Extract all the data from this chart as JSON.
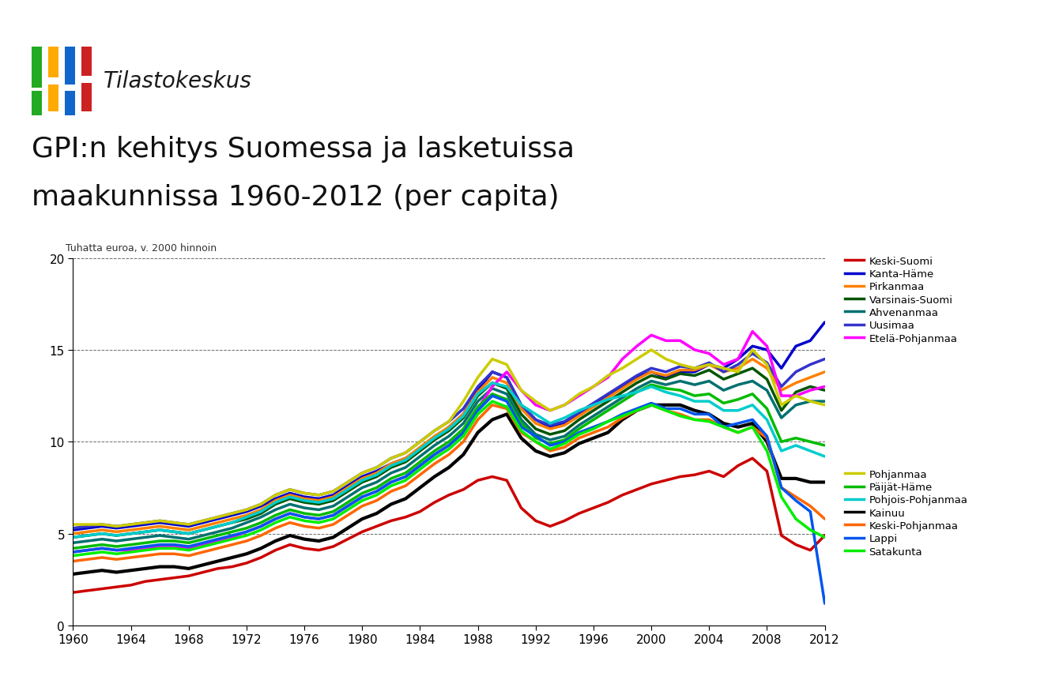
{
  "title_line1": "GPI:n kehitys Suomessa ja lasketuissa",
  "title_line2": "maakunnissa 1960-2012 (per capita)",
  "subtitle": "Tuhatta euroa, v. 2000 hinnoin",
  "years": [
    1960,
    1961,
    1962,
    1963,
    1964,
    1965,
    1966,
    1967,
    1968,
    1969,
    1970,
    1971,
    1972,
    1973,
    1974,
    1975,
    1976,
    1977,
    1978,
    1979,
    1980,
    1981,
    1982,
    1983,
    1984,
    1985,
    1986,
    1987,
    1988,
    1989,
    1990,
    1991,
    1992,
    1993,
    1994,
    1995,
    1996,
    1997,
    1998,
    1999,
    2000,
    2001,
    2002,
    2003,
    2004,
    2005,
    2006,
    2007,
    2008,
    2009,
    2010,
    2011,
    2012
  ],
  "series": [
    {
      "name": "Keski-Suomi",
      "color": "#CC0000",
      "lw": 2.5,
      "values": [
        1.8,
        1.9,
        2.0,
        2.1,
        2.2,
        2.4,
        2.5,
        2.6,
        2.7,
        2.9,
        3.1,
        3.2,
        3.4,
        3.7,
        4.1,
        4.4,
        4.2,
        4.1,
        4.3,
        4.7,
        5.1,
        5.4,
        5.7,
        5.9,
        6.2,
        6.7,
        7.1,
        7.4,
        7.9,
        8.1,
        7.9,
        6.4,
        5.7,
        5.4,
        5.7,
        6.1,
        6.4,
        6.7,
        7.1,
        7.4,
        7.7,
        7.9,
        8.1,
        8.2,
        8.4,
        8.1,
        8.7,
        9.1,
        8.4,
        4.9,
        4.4,
        4.1,
        4.9
      ]
    },
    {
      "name": "Kanta-Häme",
      "color": "#0000CC",
      "lw": 2.5,
      "values": [
        5.2,
        5.3,
        5.4,
        5.3,
        5.4,
        5.5,
        5.6,
        5.5,
        5.4,
        5.6,
        5.8,
        6.0,
        6.2,
        6.5,
        6.9,
        7.2,
        7.0,
        6.9,
        7.1,
        7.6,
        8.1,
        8.4,
        8.8,
        9.1,
        9.6,
        10.2,
        10.8,
        11.5,
        12.8,
        13.8,
        13.5,
        12.0,
        11.2,
        10.8,
        11.0,
        11.5,
        12.0,
        12.5,
        13.0,
        13.5,
        13.8,
        13.5,
        13.8,
        13.8,
        14.2,
        14.0,
        14.5,
        15.2,
        15.0,
        14.0,
        15.2,
        15.5,
        16.5
      ]
    },
    {
      "name": "Pirkanmaa",
      "color": "#FF8000",
      "lw": 2.5,
      "values": [
        5.0,
        5.1,
        5.2,
        5.1,
        5.2,
        5.3,
        5.4,
        5.3,
        5.2,
        5.4,
        5.6,
        5.8,
        6.0,
        6.3,
        6.8,
        7.1,
        6.9,
        6.8,
        7.0,
        7.5,
        8.0,
        8.3,
        8.8,
        9.1,
        9.7,
        10.3,
        10.8,
        11.5,
        12.7,
        13.5,
        13.2,
        11.8,
        11.0,
        10.7,
        10.9,
        11.4,
        11.9,
        12.4,
        12.9,
        13.4,
        13.8,
        13.6,
        13.9,
        13.9,
        14.2,
        13.8,
        14.0,
        14.5,
        14.0,
        12.8,
        13.2,
        13.5,
        13.8
      ]
    },
    {
      "name": "Varsinais-Suomi",
      "color": "#005500",
      "lw": 2.5,
      "values": [
        4.8,
        4.9,
        5.0,
        4.9,
        5.0,
        5.1,
        5.2,
        5.1,
        5.0,
        5.2,
        5.4,
        5.6,
        5.8,
        6.1,
        6.6,
        6.9,
        6.7,
        6.6,
        6.8,
        7.3,
        7.8,
        8.1,
        8.6,
        8.9,
        9.5,
        10.1,
        10.6,
        11.3,
        12.5,
        13.2,
        12.9,
        11.5,
        10.7,
        10.4,
        10.6,
        11.2,
        11.7,
        12.2,
        12.7,
        13.2,
        13.6,
        13.4,
        13.7,
        13.6,
        13.9,
        13.4,
        13.7,
        14.0,
        13.4,
        11.7,
        12.7,
        13.0,
        12.8
      ]
    },
    {
      "name": "Ahvenanmaa",
      "color": "#007070",
      "lw": 2.5,
      "values": [
        4.5,
        4.6,
        4.7,
        4.6,
        4.7,
        4.8,
        4.9,
        4.8,
        4.7,
        4.9,
        5.1,
        5.3,
        5.6,
        5.9,
        6.3,
        6.6,
        6.4,
        6.3,
        6.5,
        7.0,
        7.5,
        7.8,
        8.3,
        8.6,
        9.2,
        9.8,
        10.3,
        11.0,
        12.2,
        12.9,
        12.6,
        11.2,
        10.4,
        10.1,
        10.3,
        10.9,
        11.4,
        11.9,
        12.4,
        12.9,
        13.3,
        13.1,
        13.3,
        13.1,
        13.3,
        12.8,
        13.1,
        13.3,
        12.8,
        11.3,
        12.0,
        12.2,
        12.2
      ]
    },
    {
      "name": "Uusimaa",
      "color": "#3333CC",
      "lw": 2.5,
      "values": [
        5.3,
        5.4,
        5.5,
        5.4,
        5.5,
        5.6,
        5.7,
        5.6,
        5.5,
        5.7,
        5.9,
        6.1,
        6.3,
        6.6,
        7.1,
        7.4,
        7.2,
        7.1,
        7.3,
        7.8,
        8.3,
        8.6,
        9.1,
        9.4,
        10.0,
        10.6,
        11.1,
        11.8,
        13.0,
        13.8,
        13.5,
        12.0,
        11.2,
        10.9,
        11.1,
        11.6,
        12.1,
        12.6,
        13.1,
        13.6,
        14.0,
        13.8,
        14.1,
        14.0,
        14.3,
        13.8,
        14.2,
        14.8,
        14.3,
        13.0,
        13.8,
        14.2,
        14.5
      ]
    },
    {
      "name": "Etelä-Pohjanmaa",
      "color": "#FF00FF",
      "lw": 2.5,
      "values": [
        4.0,
        4.1,
        4.2,
        4.1,
        4.1,
        4.2,
        4.3,
        4.3,
        4.2,
        4.4,
        4.6,
        4.8,
        5.1,
        5.4,
        5.8,
        6.1,
        5.9,
        5.8,
        6.0,
        6.5,
        7.0,
        7.3,
        7.8,
        8.1,
        8.7,
        9.3,
        9.8,
        10.5,
        11.8,
        13.0,
        13.8,
        12.8,
        12.0,
        11.7,
        12.0,
        12.5,
        13.0,
        13.5,
        14.5,
        15.2,
        15.8,
        15.5,
        15.5,
        15.0,
        14.8,
        14.2,
        14.5,
        16.0,
        15.2,
        12.5,
        12.5,
        12.8,
        13.0
      ]
    },
    {
      "name": "Pohjanmaa",
      "color": "#CCCC00",
      "lw": 2.5,
      "values": [
        5.5,
        5.5,
        5.5,
        5.4,
        5.5,
        5.6,
        5.7,
        5.6,
        5.5,
        5.7,
        5.9,
        6.1,
        6.3,
        6.6,
        7.1,
        7.4,
        7.2,
        7.1,
        7.3,
        7.8,
        8.3,
        8.6,
        9.1,
        9.4,
        10.0,
        10.6,
        11.1,
        12.2,
        13.5,
        14.5,
        14.2,
        12.8,
        12.2,
        11.7,
        12.0,
        12.6,
        13.0,
        13.6,
        14.0,
        14.5,
        15.0,
        14.5,
        14.2,
        14.0,
        14.2,
        14.0,
        13.8,
        15.0,
        14.2,
        12.0,
        12.5,
        12.2,
        12.0
      ]
    },
    {
      "name": "Päijät-Häme",
      "color": "#00BB00",
      "lw": 2.5,
      "values": [
        4.2,
        4.3,
        4.4,
        4.3,
        4.4,
        4.5,
        4.6,
        4.6,
        4.5,
        4.7,
        4.9,
        5.1,
        5.3,
        5.6,
        6.0,
        6.3,
        6.1,
        6.0,
        6.2,
        6.7,
        7.2,
        7.5,
        8.0,
        8.3,
        8.9,
        9.5,
        10.0,
        10.7,
        11.9,
        12.6,
        12.3,
        11.0,
        10.2,
        9.9,
        10.1,
        10.7,
        11.2,
        11.7,
        12.2,
        12.7,
        13.1,
        12.9,
        12.8,
        12.5,
        12.6,
        12.1,
        12.3,
        12.6,
        11.8,
        10.0,
        10.2,
        10.0,
        9.8
      ]
    },
    {
      "name": "Pohjois-Pohjanmaa",
      "color": "#00CCCC",
      "lw": 2.5,
      "values": [
        4.8,
        4.9,
        5.0,
        4.9,
        5.0,
        5.1,
        5.2,
        5.1,
        5.0,
        5.2,
        5.4,
        5.6,
        5.9,
        6.2,
        6.7,
        7.0,
        6.8,
        6.7,
        6.9,
        7.4,
        7.9,
        8.2,
        8.7,
        9.0,
        9.6,
        10.2,
        10.7,
        11.4,
        12.6,
        13.2,
        13.0,
        12.0,
        11.5,
        11.0,
        11.3,
        11.7,
        12.0,
        12.3,
        12.5,
        12.7,
        13.0,
        12.7,
        12.5,
        12.2,
        12.2,
        11.7,
        11.7,
        12.0,
        11.2,
        9.5,
        9.8,
        9.5,
        9.2
      ]
    },
    {
      "name": "Kainuu",
      "color": "#000000",
      "lw": 3.0,
      "values": [
        2.8,
        2.9,
        3.0,
        2.9,
        3.0,
        3.1,
        3.2,
        3.2,
        3.1,
        3.3,
        3.5,
        3.7,
        3.9,
        4.2,
        4.6,
        4.9,
        4.7,
        4.6,
        4.8,
        5.3,
        5.8,
        6.1,
        6.6,
        6.9,
        7.5,
        8.1,
        8.6,
        9.3,
        10.5,
        11.2,
        11.5,
        10.2,
        9.5,
        9.2,
        9.4,
        9.9,
        10.2,
        10.5,
        11.2,
        11.7,
        12.0,
        12.0,
        12.0,
        11.7,
        11.5,
        11.0,
        10.8,
        11.0,
        10.0,
        8.0,
        8.0,
        7.8,
        7.8
      ]
    },
    {
      "name": "Keski-Pohjanmaa",
      "color": "#FF6600",
      "lw": 2.5,
      "values": [
        3.5,
        3.6,
        3.7,
        3.6,
        3.7,
        3.8,
        3.9,
        3.9,
        3.8,
        4.0,
        4.2,
        4.4,
        4.6,
        4.9,
        5.3,
        5.6,
        5.4,
        5.3,
        5.5,
        6.0,
        6.5,
        6.8,
        7.3,
        7.6,
        8.2,
        8.8,
        9.3,
        10.0,
        11.2,
        12.0,
        11.8,
        10.5,
        10.0,
        9.5,
        9.7,
        10.2,
        10.5,
        10.8,
        11.3,
        11.7,
        12.0,
        11.7,
        11.5,
        11.2,
        11.2,
        10.8,
        10.5,
        10.8,
        10.2,
        7.5,
        7.0,
        6.5,
        5.8
      ]
    },
    {
      "name": "Lappi",
      "color": "#0055EE",
      "lw": 2.5,
      "values": [
        4.0,
        4.1,
        4.2,
        4.1,
        4.2,
        4.3,
        4.4,
        4.4,
        4.3,
        4.5,
        4.7,
        4.9,
        5.1,
        5.4,
        5.8,
        6.1,
        5.9,
        5.8,
        6.0,
        6.5,
        7.0,
        7.3,
        7.8,
        8.1,
        8.7,
        9.3,
        9.8,
        10.5,
        11.7,
        12.5,
        12.2,
        10.8,
        10.3,
        9.8,
        10.0,
        10.5,
        10.8,
        11.1,
        11.5,
        11.8,
        12.1,
        11.8,
        11.8,
        11.5,
        11.5,
        10.8,
        11.0,
        11.2,
        10.3,
        7.5,
        6.8,
        6.2,
        1.2
      ]
    },
    {
      "name": "Satakunta",
      "color": "#00EE00",
      "lw": 2.5,
      "values": [
        3.8,
        3.9,
        4.0,
        3.9,
        4.0,
        4.1,
        4.2,
        4.2,
        4.1,
        4.3,
        4.5,
        4.7,
        4.9,
        5.2,
        5.6,
        5.9,
        5.7,
        5.6,
        5.8,
        6.3,
        6.8,
        7.1,
        7.6,
        7.9,
        8.5,
        9.1,
        9.6,
        10.3,
        11.5,
        12.2,
        11.9,
        10.6,
        10.0,
        9.6,
        9.9,
        10.4,
        10.7,
        11.1,
        11.4,
        11.7,
        12.0,
        11.7,
        11.4,
        11.2,
        11.1,
        10.8,
        10.5,
        10.8,
        9.5,
        7.0,
        5.8,
        5.2,
        4.8
      ]
    }
  ],
  "xlim": [
    1960,
    2012
  ],
  "ylim": [
    0,
    20
  ],
  "yticks": [
    0,
    5,
    10,
    15,
    20
  ],
  "xticks": [
    1960,
    1964,
    1968,
    1972,
    1976,
    1980,
    1984,
    1988,
    1992,
    1996,
    2000,
    2004,
    2008,
    2012
  ],
  "background_color": "#FFFFFF",
  "logo_text": "Tilastokeskus",
  "legend_group1": [
    "Keski-Suomi",
    "Kanta-Häme",
    "Pirkanmaa",
    "Varsinais-Suomi",
    "Ahvenanmaa",
    "Uusimaa",
    "Etelä-Pohjanmaa"
  ],
  "legend_group2": [
    "Pohjanmaa",
    "Päijät-Häme",
    "Pohjois-Pohjanmaa",
    "Kainuu",
    "Keski-Pohjanmaa",
    "Lappi",
    "Satakunta"
  ]
}
